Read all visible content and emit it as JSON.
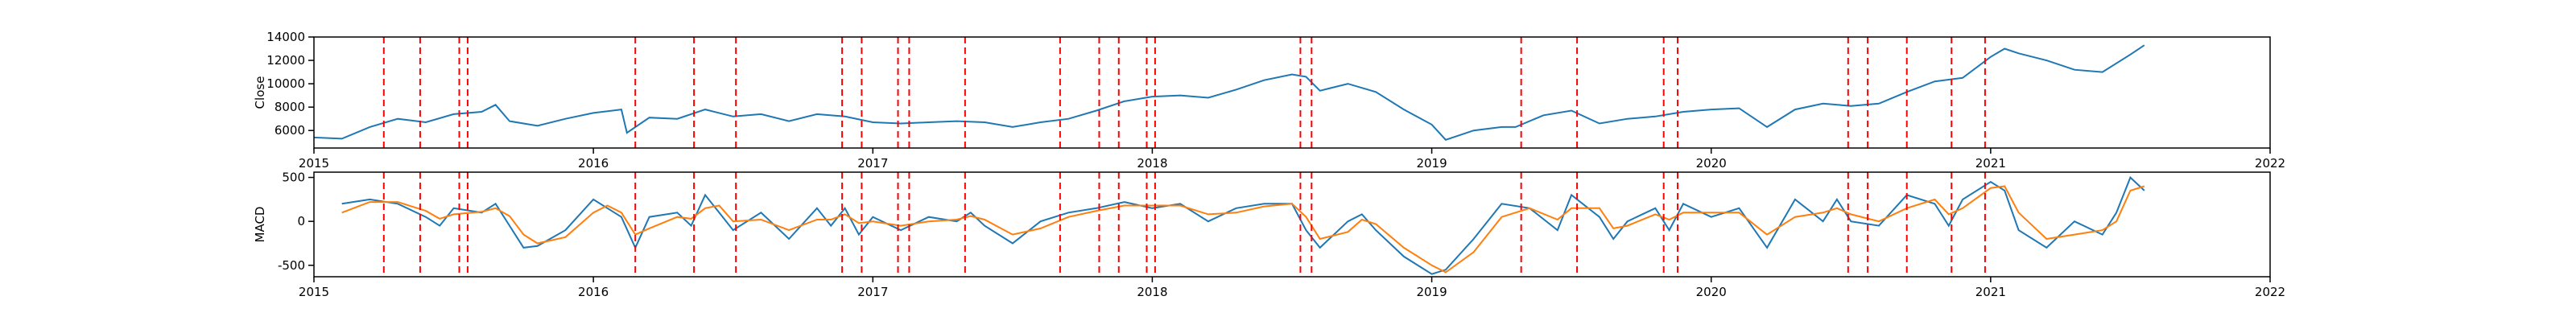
{
  "chart_data": [
    {
      "type": "line",
      "ylabel": "Close",
      "x": [
        2015.0,
        2015.1,
        2015.2,
        2015.3,
        2015.4,
        2015.5,
        2015.6,
        2015.65,
        2015.7,
        2015.8,
        2015.9,
        2016.0,
        2016.1,
        2016.12,
        2016.2,
        2016.3,
        2016.4,
        2016.5,
        2016.6,
        2016.7,
        2016.8,
        2016.9,
        2017.0,
        2017.1,
        2017.2,
        2017.3,
        2017.4,
        2017.5,
        2017.6,
        2017.7,
        2017.8,
        2017.9,
        2018.0,
        2018.1,
        2018.2,
        2018.3,
        2018.4,
        2018.5,
        2018.55,
        2018.6,
        2018.7,
        2018.8,
        2018.9,
        2019.0,
        2019.05,
        2019.15,
        2019.25,
        2019.3,
        2019.4,
        2019.5,
        2019.6,
        2019.7,
        2019.8,
        2019.9,
        2020.0,
        2020.1,
        2020.2,
        2020.3,
        2020.4,
        2020.5,
        2020.6,
        2020.7,
        2020.8,
        2020.9,
        2021.0,
        2021.05,
        2021.1,
        2021.2,
        2021.3,
        2021.4,
        2021.5,
        2021.55
      ],
      "series": [
        {
          "color": "#1f77b4",
          "values": [
            5400,
            5300,
            6300,
            7000,
            6700,
            7400,
            7600,
            8200,
            6800,
            6400,
            7000,
            7500,
            7800,
            5800,
            7100,
            7000,
            7800,
            7200,
            7400,
            6800,
            7400,
            7200,
            6700,
            6600,
            6700,
            6800,
            6700,
            6300,
            6700,
            7000,
            7700,
            8500,
            8900,
            9000,
            8800,
            9500,
            10300,
            10800,
            10600,
            9400,
            10000,
            9300,
            7800,
            6500,
            5200,
            6000,
            6300,
            6300,
            7300,
            7700,
            6600,
            7000,
            7200,
            7600,
            7800,
            7900,
            6300,
            7800,
            8300,
            8100,
            8300,
            9300,
            10200,
            10500,
            12300,
            13000,
            12600,
            12000,
            11200,
            11000,
            12500,
            13300
          ]
        }
      ],
      "xlim": [
        2015,
        2022
      ],
      "xticks": [
        2015,
        2016,
        2017,
        2018,
        2019,
        2020,
        2021,
        2022
      ],
      "ylim": [
        4500,
        14000
      ],
      "yticks": [
        6000,
        8000,
        10000,
        12000,
        14000
      ],
      "vlines": [
        2015.25,
        2015.38,
        2015.52,
        2015.55,
        2016.15,
        2016.36,
        2016.51,
        2016.89,
        2016.96,
        2017.09,
        2017.13,
        2017.33,
        2017.67,
        2017.81,
        2017.88,
        2017.98,
        2018.01,
        2018.53,
        2018.57,
        2019.32,
        2019.52,
        2019.83,
        2019.88,
        2020.49,
        2020.56,
        2020.7,
        2020.86,
        2020.98
      ],
      "vline_color": "#ff0000"
    },
    {
      "type": "line",
      "ylabel": "MACD",
      "x": [
        2015.1,
        2015.2,
        2015.3,
        2015.4,
        2015.45,
        2015.5,
        2015.6,
        2015.65,
        2015.7,
        2015.75,
        2015.8,
        2015.9,
        2016.0,
        2016.05,
        2016.1,
        2016.15,
        2016.2,
        2016.3,
        2016.35,
        2016.4,
        2016.45,
        2016.5,
        2016.6,
        2016.7,
        2016.8,
        2016.85,
        2016.9,
        2016.95,
        2017.0,
        2017.1,
        2017.2,
        2017.3,
        2017.35,
        2017.4,
        2017.5,
        2017.6,
        2017.7,
        2017.8,
        2017.9,
        2018.0,
        2018.1,
        2018.2,
        2018.3,
        2018.4,
        2018.5,
        2018.55,
        2018.6,
        2018.7,
        2018.75,
        2018.8,
        2018.9,
        2019.0,
        2019.05,
        2019.15,
        2019.25,
        2019.35,
        2019.45,
        2019.5,
        2019.6,
        2019.65,
        2019.7,
        2019.8,
        2019.85,
        2019.9,
        2020.0,
        2020.1,
        2020.2,
        2020.3,
        2020.4,
        2020.45,
        2020.5,
        2020.6,
        2020.7,
        2020.8,
        2020.85,
        2020.9,
        2021.0,
        2021.05,
        2021.1,
        2021.2,
        2021.3,
        2021.4,
        2021.45,
        2021.5,
        2021.55
      ],
      "series": [
        {
          "color": "#1f77b4",
          "values": [
            200,
            250,
            200,
            50,
            -50,
            150,
            100,
            200,
            -50,
            -300,
            -280,
            -100,
            250,
            150,
            50,
            -300,
            50,
            100,
            -50,
            300,
            100,
            -100,
            100,
            -200,
            150,
            -50,
            150,
            -150,
            50,
            -100,
            50,
            0,
            100,
            -50,
            -250,
            0,
            100,
            150,
            220,
            150,
            200,
            0,
            150,
            200,
            200,
            -100,
            -300,
            0,
            80,
            -100,
            -400,
            -600,
            -550,
            -200,
            200,
            150,
            -100,
            300,
            50,
            -200,
            0,
            150,
            -100,
            200,
            50,
            150,
            -300,
            250,
            0,
            250,
            0,
            -50,
            300,
            200,
            -50,
            250,
            450,
            350,
            -100,
            -300,
            0,
            -150,
            100,
            500,
            350
          ]
        },
        {
          "color": "#ff7f0e",
          "values": [
            100,
            220,
            220,
            120,
            30,
            80,
            110,
            150,
            60,
            -150,
            -250,
            -180,
            100,
            180,
            100,
            -150,
            -80,
            50,
            30,
            150,
            180,
            0,
            20,
            -100,
            20,
            20,
            80,
            -20,
            0,
            -50,
            0,
            20,
            60,
            20,
            -150,
            -80,
            50,
            120,
            180,
            180,
            180,
            80,
            100,
            170,
            200,
            50,
            -200,
            -120,
            20,
            -30,
            -300,
            -500,
            -580,
            -350,
            50,
            150,
            20,
            150,
            150,
            -80,
            -50,
            80,
            20,
            100,
            100,
            100,
            -150,
            50,
            100,
            150,
            80,
            0,
            150,
            250,
            80,
            150,
            380,
            400,
            100,
            -200,
            -150,
            -100,
            0,
            350,
            400
          ]
        }
      ],
      "xlim": [
        2015,
        2022
      ],
      "xticks": [
        2015,
        2016,
        2017,
        2018,
        2019,
        2020,
        2021,
        2022
      ],
      "ylim": [
        -630,
        560
      ],
      "yticks": [
        -500,
        0,
        500
      ],
      "vlines": [
        2015.25,
        2015.38,
        2015.52,
        2015.55,
        2016.15,
        2016.36,
        2016.51,
        2016.89,
        2016.96,
        2017.09,
        2017.13,
        2017.33,
        2017.67,
        2017.81,
        2017.88,
        2017.98,
        2018.01,
        2018.53,
        2018.57,
        2019.32,
        2019.52,
        2019.83,
        2019.88,
        2020.49,
        2020.56,
        2020.7,
        2020.86,
        2020.98
      ],
      "vline_color": "#ff0000"
    }
  ]
}
